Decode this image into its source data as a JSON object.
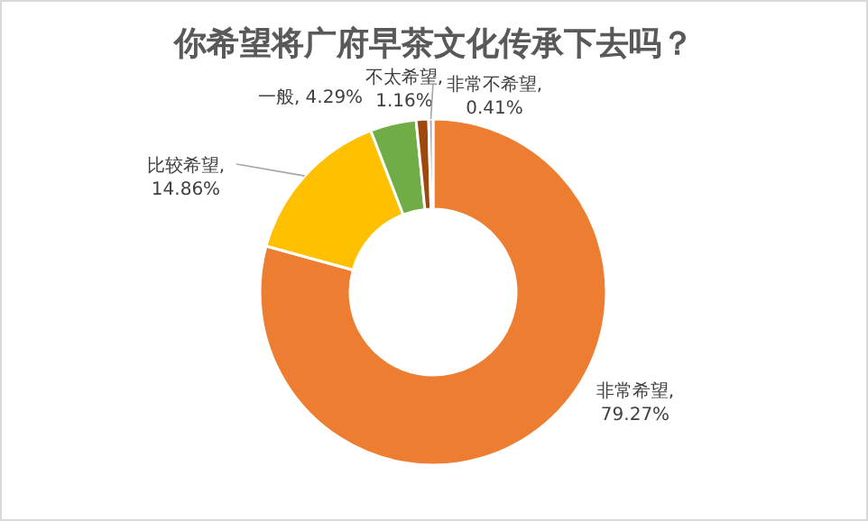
{
  "chart_data": {
    "type": "donut",
    "title": "你希望将广府早茶文化传承下去吗？",
    "categories": [
      "非常希望",
      "比较希望",
      "一般",
      "不太希望",
      "非常不希望"
    ],
    "values": [
      79.27,
      14.86,
      4.29,
      1.16,
      0.41
    ],
    "colors": [
      "#ed7d31",
      "#ffc000",
      "#70ad47",
      "#9e480e",
      "#a5a5a5"
    ],
    "value_labels": [
      ", 79.27%",
      ", 14.86%",
      ", 4.29%",
      ", 1.16%",
      ", 0.41%"
    ]
  }
}
